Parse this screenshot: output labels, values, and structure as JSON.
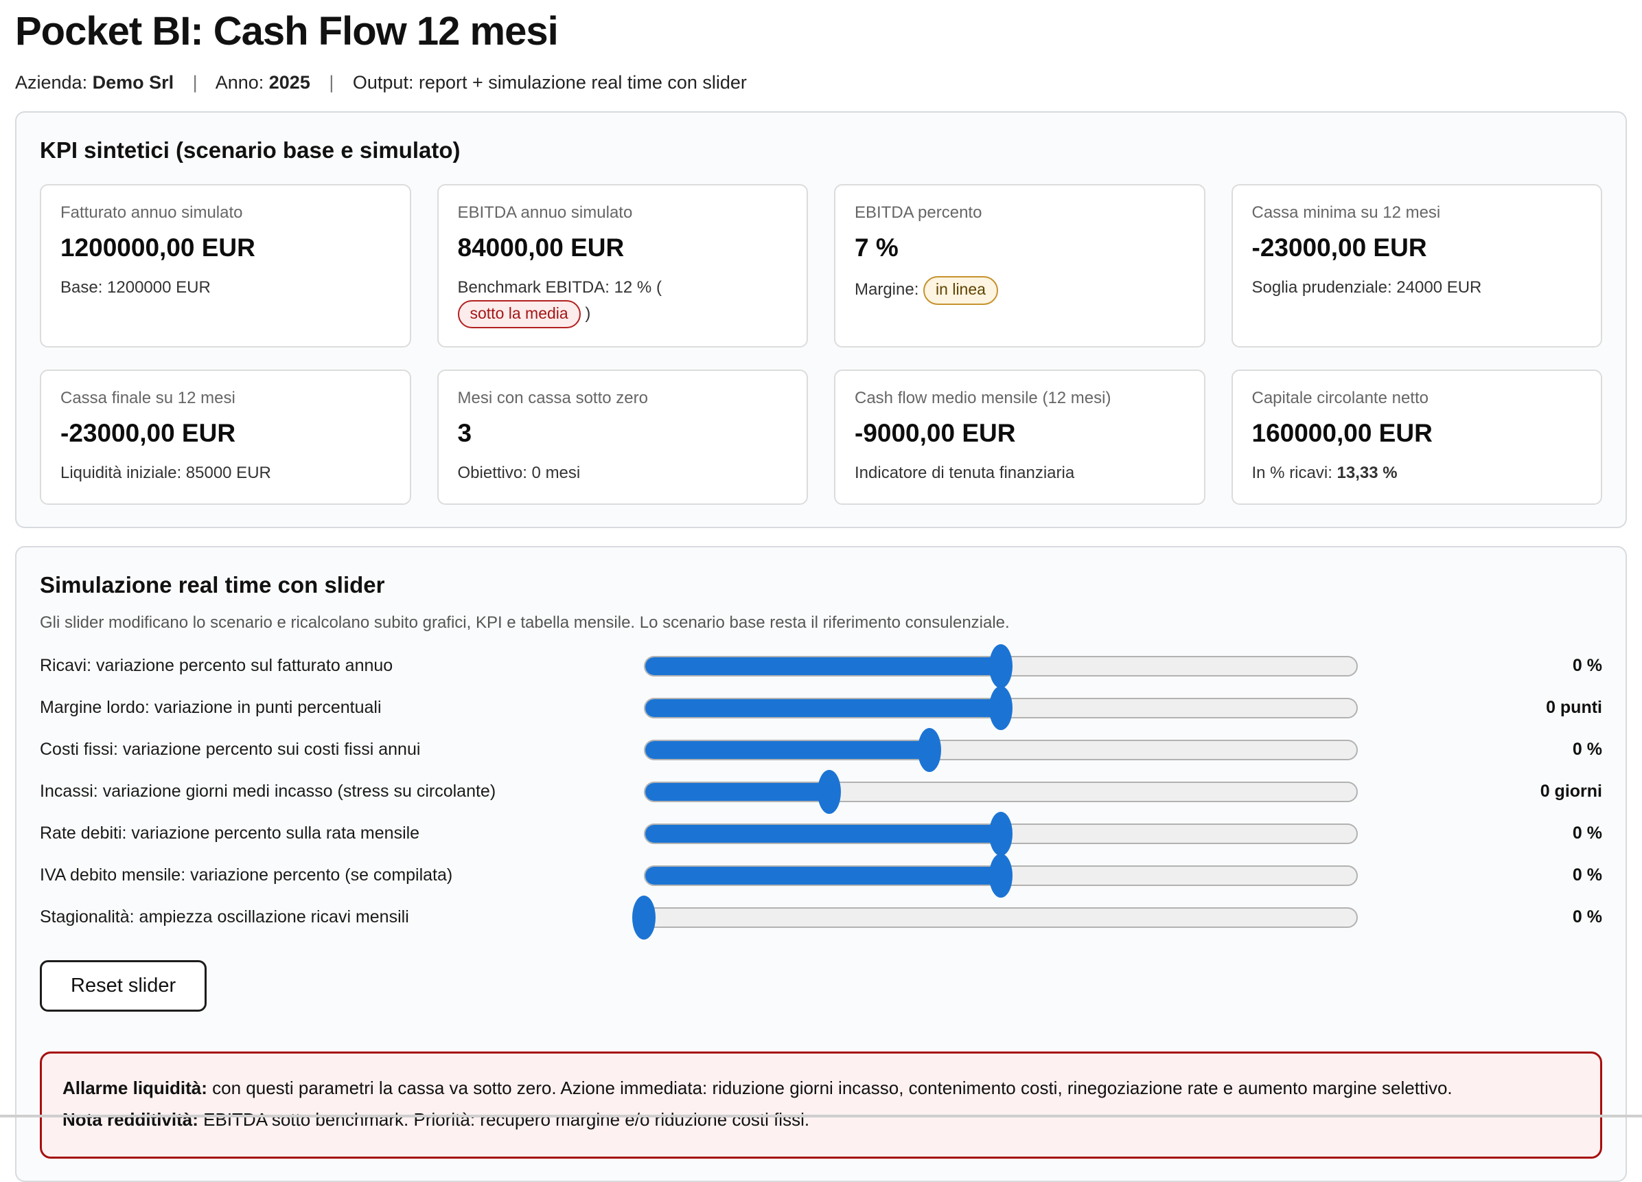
{
  "page": {
    "title": "Pocket BI: Cash Flow 12 mesi",
    "meta": {
      "azienda_label": "Azienda:",
      "azienda_value": "Demo Srl",
      "anno_label": "Anno:",
      "anno_value": "2025",
      "output_label": "Output:",
      "output_value": "report + simulazione real time con slider",
      "separator": "|"
    }
  },
  "kpi_section": {
    "title": "KPI sintetici (scenario base e simulato)",
    "cards": [
      {
        "label": "Fatturato annuo simulato",
        "value": "1200000,00 EUR",
        "sub": "Base: 1200000 EUR"
      },
      {
        "label": "EBITDA annuo simulato",
        "value": "84000,00 EUR",
        "sub_prefix": "Benchmark EBITDA: 12 % (",
        "badge": "sotto la media",
        "badge_type": "danger",
        "sub_suffix": ")"
      },
      {
        "label": "EBITDA percento",
        "value": "7 %",
        "sub_prefix": "Margine: ",
        "badge": "in linea",
        "badge_type": "warning",
        "sub_suffix": ""
      },
      {
        "label": "Cassa minima su 12 mesi",
        "value": "-23000,00 EUR",
        "sub": "Soglia prudenziale: 24000 EUR"
      },
      {
        "label": "Cassa finale su 12 mesi",
        "value": "-23000,00 EUR",
        "sub": "Liquidità iniziale: 85000 EUR"
      },
      {
        "label": "Mesi con cassa sotto zero",
        "value": "3",
        "sub": "Obiettivo: 0 mesi"
      },
      {
        "label": "Cash flow medio mensile (12 mesi)",
        "value": "-9000,00 EUR",
        "sub": "Indicatore di tenuta finanziaria"
      },
      {
        "label": "Capitale circolante netto",
        "value": "160000,00 EUR",
        "sub_prefix": "In % ricavi: ",
        "sub_bold": "13,33 %"
      }
    ]
  },
  "simulation_section": {
    "title": "Simulazione real time con slider",
    "description": "Gli slider modificano lo scenario e ricalcolano subito grafici, KPI e tabella mensile. Lo scenario base resta il riferimento consulenziale.",
    "sliders": [
      {
        "label": "Ricavi: variazione percento sul fatturato annuo",
        "value": "0 %",
        "fraction": 0.5
      },
      {
        "label": "Margine lordo: variazione in punti percentuali",
        "value": "0 punti",
        "fraction": 0.5
      },
      {
        "label": "Costi fissi: variazione percento sui costi fissi annui",
        "value": "0 %",
        "fraction": 0.4
      },
      {
        "label": "Incassi: variazione giorni medi incasso (stress su circolante)",
        "value": "0 giorni",
        "fraction": 0.26
      },
      {
        "label": "Rate debiti: variazione percento sulla rata mensile",
        "value": "0 %",
        "fraction": 0.5
      },
      {
        "label": "IVA debito mensile: variazione percento (se compilata)",
        "value": "0 %",
        "fraction": 0.5
      },
      {
        "label": "Stagionalità: ampiezza oscillazione ricavi mensili",
        "value": "0 %",
        "fraction": 0.0
      }
    ],
    "reset_button": "Reset slider"
  },
  "alerts": {
    "liquidity_bold": "Allarme liquidità:",
    "liquidity_text": " con questi parametri la cassa va sotto zero. Azione immediata: riduzione giorni incasso, contenimento costi, rinegoziazione rate e aumento margine selettivo.",
    "profitability_bold": "Nota redditività:",
    "profitability_text": " EBITDA sotto benchmark. Priorità: recupero margine e/o riduzione costi fissi."
  },
  "colors": {
    "slider_blue": "#1b74d4",
    "danger_red": "#a60f0f",
    "danger_bg": "#fdf1f1",
    "warning_amber": "#c6922d",
    "warning_bg": "#fdf4e1"
  }
}
